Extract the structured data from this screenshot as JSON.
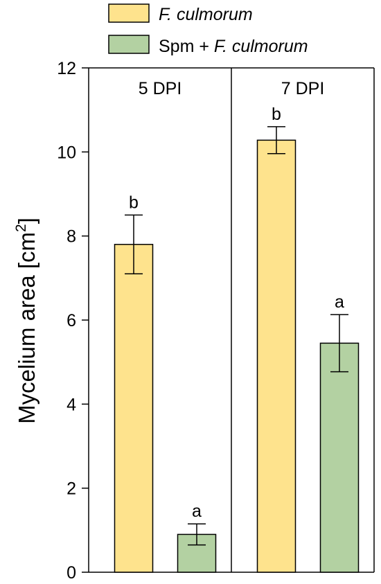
{
  "chart_data": {
    "type": "bar",
    "ylabel": "Mycelium area [cm",
    "ylabel_sup": "2",
    "ylabel_close": "]",
    "ylim": [
      0,
      12
    ],
    "yticks": [
      "0",
      "2",
      "4",
      "6",
      "8",
      "10",
      "12"
    ],
    "grid": false,
    "legend_position": "top-center",
    "series": [
      {
        "prefix": "",
        "name": "F. culmorum",
        "color": "#fee38d"
      },
      {
        "prefix": "Spm + ",
        "name": "F. culmorum",
        "color": "#b3d1a2"
      }
    ],
    "panels": [
      {
        "label": "5 DPI",
        "values": [
          7.8,
          0.9
        ],
        "errors": [
          0.7,
          0.25
        ],
        "letters": [
          "b",
          "a"
        ]
      },
      {
        "label": "7 DPI",
        "values": [
          10.28,
          5.45
        ],
        "errors": [
          0.32,
          0.68
        ],
        "letters": [
          "b",
          "a"
        ]
      }
    ]
  }
}
